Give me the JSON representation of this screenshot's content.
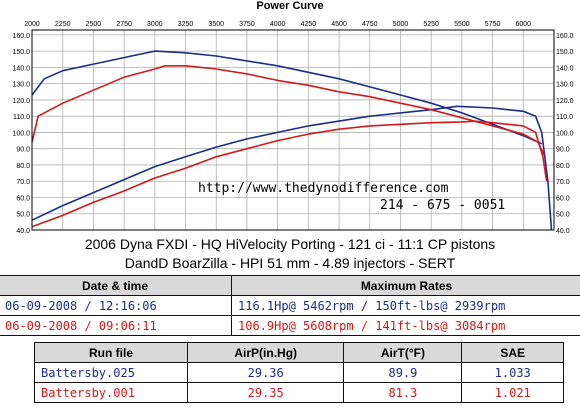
{
  "chart_data": {
    "type": "line",
    "title": "Power Curve",
    "xlabel": "",
    "ylabel": "",
    "x_ticks": [
      "2000",
      "2250",
      "2500",
      "2750",
      "3000",
      "3250",
      "3500",
      "3750",
      "4000",
      "4250",
      "4500",
      "4750",
      "5000",
      "5250",
      "5500",
      "5750",
      "6000"
    ],
    "xlim": [
      2000,
      6250
    ],
    "y_ticks": [
      "40.0",
      "50.0",
      "60.0",
      "70.0",
      "80.0",
      "90.0",
      "100.0",
      "110.0",
      "120.0",
      "130.0",
      "140.0",
      "150.0",
      "160.0"
    ],
    "ylim": [
      40,
      163
    ],
    "grid": true,
    "series": [
      {
        "name": "Battersby.025 Torque",
        "color": "#1a2f8a",
        "points": [
          [
            2000,
            123
          ],
          [
            2100,
            133
          ],
          [
            2250,
            138
          ],
          [
            2500,
            142
          ],
          [
            2750,
            146
          ],
          [
            3000,
            150
          ],
          [
            3250,
            149
          ],
          [
            3500,
            147
          ],
          [
            3750,
            144
          ],
          [
            4000,
            141
          ],
          [
            4250,
            137
          ],
          [
            4500,
            133
          ],
          [
            4750,
            128
          ],
          [
            5000,
            123
          ],
          [
            5250,
            118
          ],
          [
            5500,
            112
          ],
          [
            5750,
            105
          ],
          [
            6000,
            98
          ],
          [
            6150,
            93
          ]
        ]
      },
      {
        "name": "Battersby.025 HP",
        "color": "#1a2f8a",
        "points": [
          [
            2000,
            46
          ],
          [
            2250,
            55
          ],
          [
            2500,
            63
          ],
          [
            2750,
            71
          ],
          [
            3000,
            79
          ],
          [
            3250,
            85
          ],
          [
            3500,
            91
          ],
          [
            3750,
            96
          ],
          [
            4000,
            100
          ],
          [
            4250,
            104
          ],
          [
            4500,
            107
          ],
          [
            4750,
            110
          ],
          [
            5000,
            112
          ],
          [
            5250,
            114
          ],
          [
            5462,
            116.1
          ],
          [
            5750,
            115
          ],
          [
            6000,
            113
          ],
          [
            6100,
            110
          ],
          [
            6150,
            100
          ],
          [
            6200,
            70
          ],
          [
            6230,
            40
          ]
        ]
      },
      {
        "name": "Battersby.001 Torque",
        "color": "#d11a1a",
        "points": [
          [
            2000,
            94
          ],
          [
            2050,
            110
          ],
          [
            2250,
            118
          ],
          [
            2500,
            126
          ],
          [
            2750,
            134
          ],
          [
            3000,
            139
          ],
          [
            3084,
            141
          ],
          [
            3250,
            141
          ],
          [
            3500,
            139
          ],
          [
            3750,
            136
          ],
          [
            4000,
            132
          ],
          [
            4250,
            129
          ],
          [
            4500,
            125
          ],
          [
            4750,
            122
          ],
          [
            5000,
            118
          ],
          [
            5250,
            114
          ],
          [
            5500,
            109
          ],
          [
            5750,
            104
          ],
          [
            6000,
            99
          ],
          [
            6120,
            94
          ],
          [
            6170,
            86
          ]
        ]
      },
      {
        "name": "Battersby.001 HP",
        "color": "#d11a1a",
        "points": [
          [
            2000,
            42
          ],
          [
            2250,
            49
          ],
          [
            2500,
            57
          ],
          [
            2750,
            64
          ],
          [
            3000,
            72
          ],
          [
            3250,
            78
          ],
          [
            3500,
            85
          ],
          [
            3750,
            90
          ],
          [
            4000,
            95
          ],
          [
            4250,
            99
          ],
          [
            4500,
            102
          ],
          [
            4750,
            104
          ],
          [
            5000,
            105
          ],
          [
            5250,
            106
          ],
          [
            5500,
            106.5
          ],
          [
            5608,
            106.9
          ],
          [
            5750,
            106
          ],
          [
            6000,
            104
          ],
          [
            6100,
            100
          ],
          [
            6160,
            85
          ],
          [
            6190,
            70
          ]
        ]
      }
    ],
    "annotations": [
      "http://www.thedynodifference.com",
      "214 - 675 - 0051"
    ]
  },
  "caption": {
    "line1": "2006 Dyna FXDI - HQ HiVelocity Porting - 121 ci - 11:1 CP pistons",
    "line2": "DandD BoarZilla -  HPI 51 mm - 4.89 injectors - SERT"
  },
  "table1": {
    "headers": [
      "Date & time",
      "Maximum Rates"
    ],
    "rows": [
      {
        "date": "06-09-2008 / 12:16:06",
        "rates": "116.1Hp@ 5462rpm / 150ft-lbs@ 2939rpm",
        "color": "#1a2f8a"
      },
      {
        "date": "06-09-2008 / 09:06:11",
        "rates": "106.9Hp@ 5608rpm / 141ft-lbs@ 3084rpm",
        "color": "#d11a1a"
      }
    ]
  },
  "table2": {
    "headers": [
      "Run file",
      "AirP(in.Hg)",
      "AirT(°F)",
      "SAE"
    ],
    "rows": [
      {
        "file": "Battersby.025",
        "airp": "29.36",
        "airt": "89.9",
        "sae": "1.033",
        "color": "#1a2f8a"
      },
      {
        "file": "Battersby.001",
        "airp": "29.35",
        "airt": "81.3",
        "sae": "1.021",
        "color": "#d11a1a"
      }
    ]
  }
}
